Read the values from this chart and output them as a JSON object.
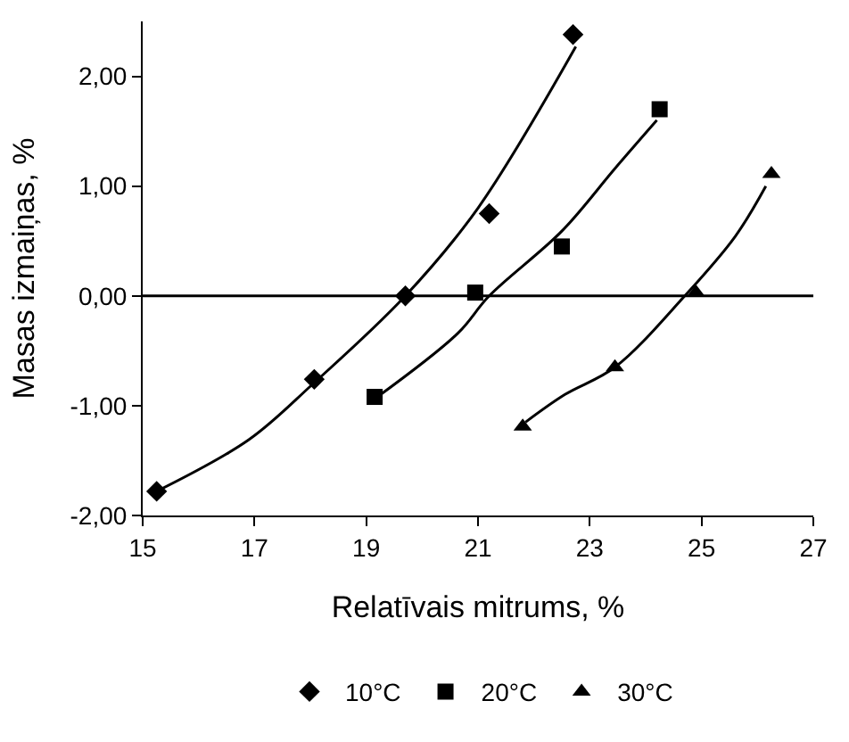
{
  "chart_data": {
    "type": "scatter",
    "xlabel": "Relatīvais mitrums, %",
    "ylabel": "Masas izmaiņas, %",
    "series": [
      {
        "name": "10°C",
        "color": "#000000",
        "marker": "diamond",
        "x": [
          15.25,
          18.07,
          19.7,
          21.2,
          22.7
        ],
        "values": [
          -1.78,
          -0.76,
          0.0,
          0.75,
          2.38
        ]
      },
      {
        "name": "20°C",
        "color": "#000000",
        "marker": "square",
        "x": [
          19.15,
          20.95,
          22.5,
          24.25
        ],
        "values": [
          -0.92,
          0.03,
          0.45,
          1.7
        ]
      },
      {
        "name": "30°C",
        "color": "#000000",
        "marker": "triangle",
        "x": [
          21.8,
          23.45,
          24.9,
          26.25
        ],
        "values": [
          -1.19,
          -0.65,
          0.03,
          1.11
        ]
      },
      {
        "type": "line",
        "color": "#000000",
        "x": [
          15.25,
          16.9,
          18.05,
          19.7,
          21.0,
          22.75
        ],
        "values": [
          -1.78,
          -1.31,
          -0.8,
          0.0,
          0.8,
          2.27
        ]
      },
      {
        "type": "line",
        "color": "#000000",
        "x": [
          19.2,
          20.64,
          21.2,
          22.5,
          23.45,
          24.2
        ],
        "values": [
          -0.92,
          -0.34,
          0.0,
          0.59,
          1.16,
          1.6
        ]
      },
      {
        "type": "line",
        "color": "#000000",
        "x": [
          21.85,
          22.55,
          23.45,
          24.7,
          25.6,
          26.15
        ],
        "values": [
          -1.15,
          -0.9,
          -0.65,
          0.0,
          0.54,
          1.0
        ]
      }
    ],
    "xlim": [
      15,
      27
    ],
    "xticks": [
      15,
      17,
      19,
      21,
      23,
      25,
      27
    ],
    "ylim": [
      -2,
      2.5
    ],
    "yticks": [
      {
        "value": -2,
        "label": "-2,00"
      },
      {
        "value": -1,
        "label": "-1,00"
      },
      {
        "value": 0,
        "label": "0,00"
      },
      {
        "value": 1,
        "label": "1,00"
      },
      {
        "value": 2,
        "label": "2,00"
      }
    ],
    "ref_lines": [
      {
        "axis": "y",
        "value": 0,
        "color": "#000000"
      }
    ],
    "legend": "bottom"
  }
}
